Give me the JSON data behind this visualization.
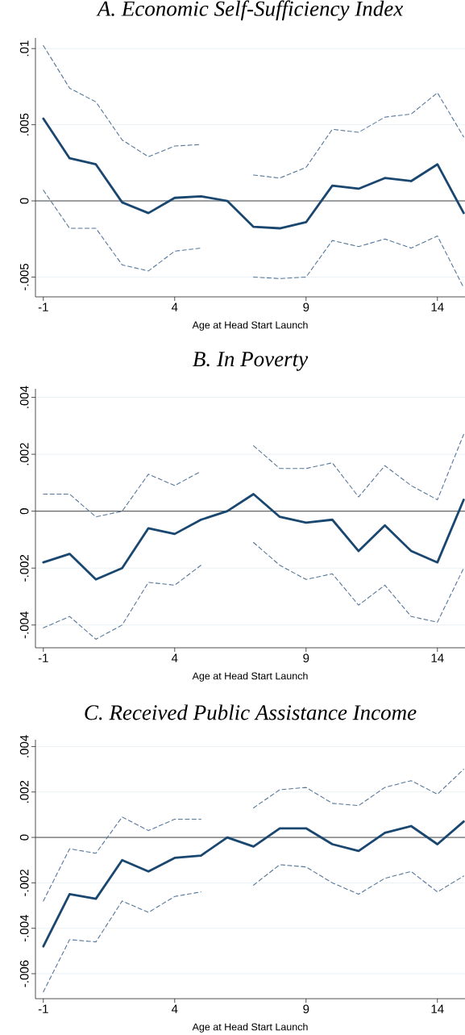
{
  "chart_data": [
    {
      "type": "line",
      "title": "*A.   Economic Self-Sufficiency Index*",
      "xlabel": "Age at Head Start Launch",
      "x": [
        -1,
        0,
        1,
        2,
        3,
        4,
        5,
        6,
        7,
        8,
        9,
        10,
        11,
        12,
        13,
        14,
        15
      ],
      "xlim": [
        -1.3,
        15.05
      ],
      "xticks": [
        -1,
        4,
        9,
        14
      ],
      "ylim": [
        -0.0063,
        0.0107
      ],
      "yticks": [
        {
          "value": -0.005,
          "label": "-.005"
        },
        0,
        {
          "value": 0.005,
          "label": ".005"
        },
        {
          "value": 0.01,
          "label": ".01"
        }
      ],
      "grid": "y",
      "ref_lines": [
        {
          "axis": "y",
          "value": 0,
          "color": "#444444"
        }
      ],
      "series": [
        {
          "color": "#1a476f",
          "line_style": "solid",
          "values": [
            0.0054,
            0.0028,
            0.0024,
            -0.0001,
            -0.0008,
            0.0002,
            0.0003,
            0,
            -0.0017,
            -0.0018,
            -0.0014,
            0.001,
            0.0008,
            0.0015,
            0.0013,
            0.0024,
            -0.0008
          ]
        },
        {
          "color": "#56779a",
          "line_style": "dashed",
          "values": [
            0.0102,
            0.0074,
            0.0065,
            0.004,
            0.0029,
            0.0036,
            0.0037,
            null,
            0.0017,
            0.0015,
            0.0022,
            0.0047,
            0.0045,
            0.0055,
            0.0057,
            0.0071,
            0.0042
          ]
        },
        {
          "color": "#56779a",
          "line_style": "dashed",
          "values": [
            0.0007,
            -0.0018,
            -0.0018,
            -0.0042,
            -0.0046,
            -0.0033,
            -0.0031,
            null,
            -0.005,
            -0.0051,
            -0.005,
            -0.0026,
            -0.003,
            -0.0025,
            -0.0031,
            -0.0023,
            -0.0057
          ]
        }
      ]
    },
    {
      "type": "line",
      "title": "*B. In Poverty*",
      "xlabel": "Age at Head Start Launch",
      "x": [
        -1,
        0,
        1,
        2,
        3,
        4,
        5,
        6,
        7,
        8,
        9,
        10,
        11,
        12,
        13,
        14,
        15
      ],
      "xlim": [
        -1.3,
        15.05
      ],
      "xticks": [
        -1,
        4,
        9,
        14
      ],
      "ylim": [
        -0.0048,
        0.0043
      ],
      "yticks": [
        {
          "value": -0.004,
          "label": "-.004"
        },
        {
          "value": -0.002,
          "label": "-.002"
        },
        0,
        {
          "value": 0.002,
          "label": ".002"
        },
        {
          "value": 0.004,
          "label": ".004"
        }
      ],
      "grid": "y",
      "ref_lines": [
        {
          "axis": "y",
          "value": 0,
          "color": "#444444"
        }
      ],
      "series": [
        {
          "color": "#1a476f",
          "line_style": "solid",
          "values": [
            -0.0018,
            -0.0015,
            -0.0024,
            -0.002,
            -0.0006,
            -0.0008,
            -0.0003,
            0,
            0.0006,
            -0.0002,
            -0.0004,
            -0.0003,
            -0.0014,
            -0.0005,
            -0.0014,
            -0.0018,
            0.0004
          ]
        },
        {
          "color": "#56779a",
          "line_style": "dashed",
          "values": [
            0.0006,
            0.0006,
            -0.0002,
            0,
            0.0013,
            0.0009,
            0.0014,
            null,
            0.0023,
            0.0015,
            0.0015,
            0.0017,
            0.0005,
            0.0016,
            0.0009,
            0.0004,
            0.0027
          ]
        },
        {
          "color": "#56779a",
          "line_style": "dashed",
          "values": [
            -0.0041,
            -0.0037,
            -0.0045,
            -0.004,
            -0.0025,
            -0.0026,
            -0.0019,
            null,
            -0.0011,
            -0.0019,
            -0.0024,
            -0.0022,
            -0.0033,
            -0.0026,
            -0.0037,
            -0.0039,
            -0.002
          ]
        }
      ]
    },
    {
      "type": "line",
      "title": "*C. Received Public Assistance Income*",
      "xlabel": "Age at Head Start Launch",
      "x": [
        -1,
        0,
        1,
        2,
        3,
        4,
        5,
        6,
        7,
        8,
        9,
        10,
        11,
        12,
        13,
        14,
        15
      ],
      "xlim": [
        -1.3,
        15.05
      ],
      "xticks": [
        -1,
        4,
        9,
        14
      ],
      "ylim": [
        -0.0071,
        0.0043
      ],
      "yticks": [
        {
          "value": -0.006,
          "label": "-.006"
        },
        {
          "value": -0.004,
          "label": "-.004"
        },
        {
          "value": -0.002,
          "label": "-.002"
        },
        0,
        {
          "value": 0.002,
          "label": ".002"
        },
        {
          "value": 0.004,
          "label": ".004"
        }
      ],
      "grid": "y",
      "ref_lines": [
        {
          "axis": "y",
          "value": 0,
          "color": "#444444"
        }
      ],
      "series": [
        {
          "color": "#1a476f",
          "line_style": "solid",
          "values": [
            -0.0048,
            -0.0025,
            -0.0027,
            -0.001,
            -0.0015,
            -0.0009,
            -0.0008,
            0,
            -0.0004,
            0.0004,
            0.0004,
            -0.0003,
            -0.0006,
            0.0002,
            0.0005,
            -0.0003,
            0.0007
          ]
        },
        {
          "color": "#56779a",
          "line_style": "dashed",
          "values": [
            -0.0028,
            -0.0005,
            -0.0007,
            0.0009,
            0.0003,
            0.0008,
            0.0008,
            null,
            0.0013,
            0.0021,
            0.0022,
            0.0015,
            0.0014,
            0.0022,
            0.0025,
            0.0019,
            0.003
          ]
        },
        {
          "color": "#56779a",
          "line_style": "dashed",
          "values": [
            -0.0068,
            -0.0045,
            -0.0046,
            -0.0028,
            -0.0033,
            -0.0026,
            -0.0024,
            null,
            -0.0021,
            -0.0012,
            -0.0013,
            -0.002,
            -0.0025,
            -0.0018,
            -0.0015,
            -0.0024,
            -0.0017
          ]
        }
      ]
    }
  ]
}
